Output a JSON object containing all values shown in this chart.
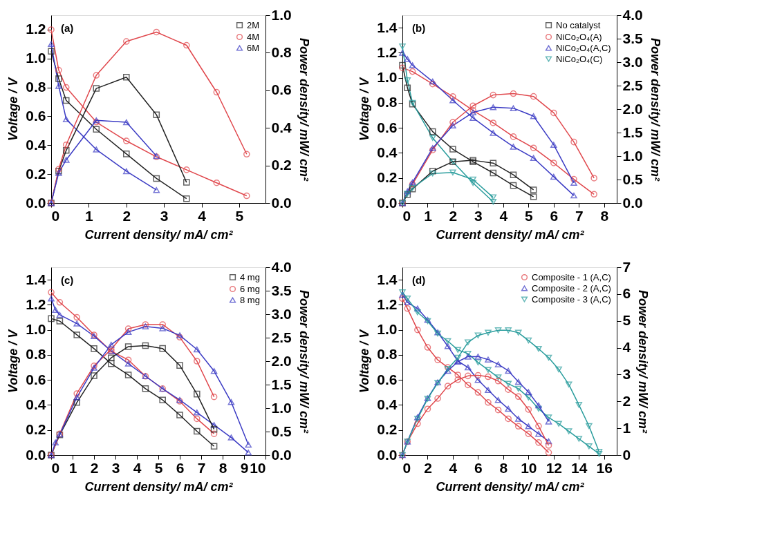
{
  "chart_data": [
    {
      "type": "line",
      "xlabel": "Current density/ mA/ cm²",
      "ylabel": "Voltage / V",
      "y2label": "Power density/ mW/ cm²",
      "annotations": [
        "(a)"
      ],
      "legend": "top right",
      "grid": false,
      "xlim": [
        0,
        5.7
      ],
      "xticks": [
        0,
        1,
        2,
        3,
        4,
        5
      ],
      "ylim": [
        0,
        1.3
      ],
      "yticks": [
        {
          "value": 0,
          "label": "0.0"
        },
        {
          "value": 0.2,
          "label": "0.2"
        },
        {
          "value": 0.4,
          "label": "0.4"
        },
        {
          "value": 0.6,
          "label": "0.6"
        },
        {
          "value": 0.8,
          "label": "0.8"
        },
        {
          "value": 1.0,
          "label": "1.0"
        },
        {
          "value": 1.2,
          "label": "1.2"
        }
      ],
      "y2lim": [
        0,
        1.0
      ],
      "y2ticks": [
        {
          "value": 0,
          "label": "0.0"
        },
        {
          "value": 0.2,
          "label": "0.2"
        },
        {
          "value": 0.4,
          "label": "0.4"
        },
        {
          "value": 0.6,
          "label": "0.6"
        },
        {
          "value": 0.8,
          "label": "0.8"
        },
        {
          "value": 1.0,
          "label": "1.0"
        }
      ],
      "series": [
        {
          "name": "2M",
          "color": "#222222",
          "marker": "square",
          "x": [
            0,
            0.2,
            0.4,
            1.2,
            2.0,
            2.8,
            3.6
          ],
          "values": [
            1.05,
            0.86,
            0.71,
            0.51,
            0.34,
            0.17,
            0.03
          ]
        },
        {
          "name": "4M",
          "color": "#e0474c",
          "marker": "circle",
          "x": [
            0,
            0.2,
            0.4,
            1.2,
            2.0,
            2.8,
            3.6,
            4.4,
            5.2
          ],
          "values": [
            1.2,
            0.92,
            0.8,
            0.56,
            0.43,
            0.32,
            0.23,
            0.14,
            0.05
          ]
        },
        {
          "name": "6M",
          "color": "#3b3bc4",
          "marker": "triangle",
          "x": [
            0,
            0.2,
            0.4,
            1.2,
            2.0,
            2.8
          ],
          "values": [
            1.1,
            0.81,
            0.58,
            0.37,
            0.22,
            0.09
          ]
        },
        {
          "color": "#222222",
          "marker": "square",
          "axis": "y2",
          "x": [
            0,
            0.2,
            0.4,
            1.2,
            2.0,
            2.8,
            3.6
          ],
          "values": [
            0,
            0.17,
            0.28,
            0.61,
            0.67,
            0.47,
            0.11
          ]
        },
        {
          "color": "#e0474c",
          "marker": "circle",
          "axis": "y2",
          "x": [
            0,
            0.2,
            0.4,
            1.2,
            2.0,
            2.8,
            3.6,
            4.4,
            5.2
          ],
          "values": [
            0,
            0.18,
            0.31,
            0.68,
            0.86,
            0.91,
            0.84,
            0.59,
            0.26
          ]
        },
        {
          "color": "#3b3bc4",
          "marker": "triangle",
          "axis": "y2",
          "x": [
            0,
            0.2,
            0.4,
            1.2,
            2.0,
            2.8
          ],
          "values": [
            0,
            0.16,
            0.23,
            0.44,
            0.43,
            0.25
          ]
        }
      ]
    },
    {
      "type": "line",
      "xlabel": "Current density/ mA/ cm²",
      "ylabel": "Voltage / V",
      "y2label": "Power density/ mW/ cm²",
      "annotations": [
        "(b)"
      ],
      "legend": "top right",
      "grid": false,
      "xlim": [
        0,
        8.5
      ],
      "xticks": [
        0,
        1,
        2,
        3,
        4,
        5,
        6,
        7,
        8
      ],
      "ylim": [
        0,
        1.5
      ],
      "yticks": [
        {
          "value": 0,
          "label": "0.0"
        },
        {
          "value": 0.2,
          "label": "0.2"
        },
        {
          "value": 0.4,
          "label": "0.4"
        },
        {
          "value": 0.6,
          "label": "0.6"
        },
        {
          "value": 0.8,
          "label": "0.8"
        },
        {
          "value": 1.0,
          "label": "1.0"
        },
        {
          "value": 1.2,
          "label": "1.2"
        },
        {
          "value": 1.4,
          "label": "1.4"
        }
      ],
      "y2lim": [
        0,
        4.0
      ],
      "y2ticks": [
        {
          "value": 0,
          "label": "0.0"
        },
        {
          "value": 0.5,
          "label": "0.5"
        },
        {
          "value": 1.0,
          "label": "1.0"
        },
        {
          "value": 1.5,
          "label": "1.5"
        },
        {
          "value": 2.0,
          "label": "2.0"
        },
        {
          "value": 2.5,
          "label": "2.5"
        },
        {
          "value": 3.0,
          "label": "3.0"
        },
        {
          "value": 3.5,
          "label": "3.5"
        },
        {
          "value": 4.0,
          "label": "4.0"
        }
      ],
      "series": [
        {
          "name": "No catalyst",
          "color": "#222222",
          "marker": "square",
          "x": [
            0,
            0.2,
            0.4,
            1.2,
            2.0,
            2.8,
            3.6,
            4.4,
            5.2
          ],
          "values": [
            1.1,
            0.92,
            0.79,
            0.57,
            0.43,
            0.33,
            0.24,
            0.14,
            0.05
          ]
        },
        {
          "name": "NiCo₂O₄(A)",
          "color": "#e0474c",
          "marker": "circle",
          "x": [
            0,
            0.4,
            1.2,
            2.0,
            2.8,
            3.6,
            4.4,
            5.2,
            6.0,
            6.8,
            7.6
          ],
          "values": [
            1.08,
            1.05,
            0.95,
            0.85,
            0.74,
            0.64,
            0.53,
            0.44,
            0.32,
            0.19,
            0.07
          ]
        },
        {
          "name": "NiCo₂O₄(A,C)",
          "color": "#3b3bc4",
          "marker": "triangle",
          "x": [
            0,
            0.2,
            0.4,
            1.2,
            2.0,
            2.8,
            3.6,
            4.4,
            5.2,
            6.0,
            6.8
          ],
          "values": [
            1.2,
            1.15,
            1.1,
            0.97,
            0.82,
            0.68,
            0.56,
            0.45,
            0.36,
            0.21,
            0.06
          ]
        },
        {
          "name": "NiCo₂O₄(C)",
          "color": "#2a9d9d",
          "marker": "triangle-down",
          "x": [
            0,
            0.2,
            0.4,
            1.2,
            2.0,
            2.8,
            3.6
          ],
          "values": [
            1.25,
            0.98,
            0.8,
            0.52,
            0.33,
            0.16,
            0.01
          ]
        },
        {
          "color": "#222222",
          "marker": "square",
          "axis": "y2",
          "x": [
            0,
            0.2,
            0.4,
            1.2,
            2.0,
            2.8,
            3.6,
            4.4,
            5.2
          ],
          "values": [
            0,
            0.18,
            0.3,
            0.68,
            0.88,
            0.91,
            0.85,
            0.6,
            0.28
          ]
        },
        {
          "color": "#e0474c",
          "marker": "circle",
          "axis": "y2",
          "x": [
            0,
            0.4,
            1.2,
            2.0,
            2.8,
            3.6,
            4.4,
            5.2,
            6.0,
            6.8,
            7.6
          ],
          "values": [
            0,
            0.4,
            1.13,
            1.72,
            2.07,
            2.3,
            2.33,
            2.27,
            1.92,
            1.3,
            0.53
          ]
        },
        {
          "color": "#3b3bc4",
          "marker": "triangle",
          "axis": "y2",
          "x": [
            0,
            0.2,
            0.4,
            1.2,
            2.0,
            2.8,
            3.6,
            4.4,
            5.2,
            6.0,
            6.8
          ],
          "values": [
            0,
            0.25,
            0.44,
            1.17,
            1.65,
            1.93,
            2.04,
            2.02,
            1.85,
            1.24,
            0.43
          ]
        },
        {
          "color": "#2a9d9d",
          "marker": "triangle-down",
          "axis": "y2",
          "x": [
            0,
            0.2,
            0.4,
            1.2,
            2.0,
            2.8,
            3.6
          ],
          "values": [
            0,
            0.2,
            0.32,
            0.63,
            0.65,
            0.5,
            0.12
          ]
        }
      ]
    },
    {
      "type": "line",
      "xlabel": "Current density/ mA/ cm²",
      "ylabel": "Voltage / V",
      "y2label": "Power density/ mW/ cm²",
      "annotations": [
        "(c)"
      ],
      "legend": "top right",
      "grid": false,
      "xlim": [
        0,
        10
      ],
      "xticks": [
        0,
        1,
        2,
        3,
        4,
        5,
        6,
        7,
        8,
        9,
        10
      ],
      "ylim": [
        0,
        1.5
      ],
      "yticks": [
        {
          "value": 0,
          "label": "0.0"
        },
        {
          "value": 0.2,
          "label": "0.2"
        },
        {
          "value": 0.4,
          "label": "0.4"
        },
        {
          "value": 0.6,
          "label": "0.6"
        },
        {
          "value": 0.8,
          "label": "0.8"
        },
        {
          "value": 1.0,
          "label": "1.0"
        },
        {
          "value": 1.2,
          "label": "1.2"
        },
        {
          "value": 1.4,
          "label": "1.4"
        }
      ],
      "y2lim": [
        0,
        4.0
      ],
      "y2ticks": [
        {
          "value": 0,
          "label": "0.0"
        },
        {
          "value": 0.5,
          "label": "0.5"
        },
        {
          "value": 1.0,
          "label": "1.0"
        },
        {
          "value": 1.5,
          "label": "1.5"
        },
        {
          "value": 2.0,
          "label": "2.0"
        },
        {
          "value": 2.5,
          "label": "2.5"
        },
        {
          "value": 3.0,
          "label": "3.0"
        },
        {
          "value": 3.5,
          "label": "3.5"
        },
        {
          "value": 4.0,
          "label": "4.0"
        }
      ],
      "series": [
        {
          "name": "4 mg",
          "color": "#222222",
          "marker": "square",
          "x": [
            0,
            0.4,
            1.2,
            2.0,
            2.8,
            3.6,
            4.4,
            5.2,
            6.0,
            6.8,
            7.6
          ],
          "values": [
            1.09,
            1.07,
            0.96,
            0.85,
            0.73,
            0.64,
            0.53,
            0.44,
            0.32,
            0.19,
            0.07
          ]
        },
        {
          "name": "6 mg",
          "color": "#e0474c",
          "marker": "circle",
          "x": [
            0,
            0.4,
            1.2,
            2.0,
            2.8,
            3.6,
            4.4,
            5.2,
            6.0,
            6.8,
            7.6
          ],
          "values": [
            1.3,
            1.22,
            1.1,
            0.96,
            0.83,
            0.76,
            0.63,
            0.53,
            0.43,
            0.29,
            0.17
          ]
        },
        {
          "name": "8 mg",
          "color": "#3b3bc4",
          "marker": "triangle",
          "x": [
            0,
            0.2,
            0.4,
            1.2,
            2.0,
            2.8,
            3.6,
            4.4,
            5.2,
            6.0,
            6.8,
            7.6,
            8.4,
            9.2
          ],
          "values": [
            1.25,
            1.16,
            1.12,
            1.05,
            0.95,
            0.83,
            0.73,
            0.63,
            0.53,
            0.44,
            0.34,
            0.24,
            0.14,
            0.02
          ]
        },
        {
          "color": "#222222",
          "marker": "square",
          "axis": "y2",
          "x": [
            0,
            0.4,
            1.2,
            2.0,
            2.8,
            3.6,
            4.4,
            5.2,
            6.0,
            6.8,
            7.6
          ],
          "values": [
            0,
            0.43,
            1.12,
            1.69,
            2.07,
            2.31,
            2.33,
            2.27,
            1.91,
            1.3,
            0.55
          ]
        },
        {
          "color": "#e0474c",
          "marker": "circle",
          "axis": "y2",
          "x": [
            0,
            0.4,
            1.2,
            2.0,
            2.8,
            3.6,
            4.4,
            5.2,
            6.0,
            6.8,
            7.6
          ],
          "values": [
            0,
            0.45,
            1.31,
            1.9,
            2.25,
            2.69,
            2.78,
            2.78,
            2.51,
            2.0,
            1.24
          ]
        },
        {
          "color": "#3b3bc4",
          "marker": "triangle",
          "axis": "y2",
          "x": [
            0,
            0.2,
            0.4,
            1.2,
            2.0,
            2.8,
            3.6,
            4.4,
            5.2,
            6.0,
            6.8,
            7.6,
            8.4,
            9.2
          ],
          "values": [
            0,
            0.27,
            0.44,
            1.23,
            1.86,
            2.35,
            2.62,
            2.74,
            2.7,
            2.55,
            2.25,
            1.79,
            1.13,
            0.22
          ]
        }
      ]
    },
    {
      "type": "line",
      "xlabel": "Current density/ mA/ cm²",
      "ylabel": "Voltage / V",
      "y2label": "Power density/ mW/ cm²",
      "annotations": [
        "(d)"
      ],
      "legend": "top right",
      "grid": false,
      "xlim": [
        0,
        17
      ],
      "xticks": [
        0,
        2,
        4,
        6,
        8,
        10,
        12,
        14,
        16
      ],
      "ylim": [
        0,
        1.5
      ],
      "yticks": [
        {
          "value": 0,
          "label": "0.0"
        },
        {
          "value": 0.2,
          "label": "0.2"
        },
        {
          "value": 0.4,
          "label": "0.4"
        },
        {
          "value": 0.6,
          "label": "0.6"
        },
        {
          "value": 0.8,
          "label": "0.8"
        },
        {
          "value": 1.0,
          "label": "1.0"
        },
        {
          "value": 1.2,
          "label": "1.2"
        },
        {
          "value": 1.4,
          "label": "1.4"
        }
      ],
      "y2lim": [
        0,
        7
      ],
      "y2ticks": [
        0,
        1,
        2,
        3,
        4,
        5,
        6,
        7
      ],
      "series": [
        {
          "name": "Composite - 1 (A,C)",
          "color": "#e0474c",
          "marker": "circle",
          "x": [
            0,
            0.4,
            1.2,
            2.0,
            2.8,
            3.6,
            4.4,
            5.2,
            6.0,
            6.8,
            7.6,
            8.4,
            9.2,
            10.0,
            10.8,
            11.6
          ],
          "values": [
            1.25,
            1.17,
            1.0,
            0.86,
            0.76,
            0.7,
            0.64,
            0.56,
            0.5,
            0.42,
            0.36,
            0.29,
            0.23,
            0.17,
            0.1,
            0.02
          ]
        },
        {
          "name": "Composite - 2 (A,C)",
          "color": "#3b3bc4",
          "marker": "triangle",
          "x": [
            0,
            0.4,
            1.2,
            2.0,
            2.8,
            3.6,
            4.4,
            5.2,
            6.0,
            6.8,
            7.6,
            8.4,
            9.2,
            10.0,
            10.8,
            11.6
          ],
          "values": [
            1.28,
            1.22,
            1.17,
            1.08,
            0.98,
            0.87,
            0.75,
            0.7,
            0.6,
            0.52,
            0.44,
            0.37,
            0.29,
            0.23,
            0.17,
            0.11
          ]
        },
        {
          "name": "Composite - 3 (A,C)",
          "color": "#2a9d9d",
          "marker": "triangle-down",
          "x": [
            0,
            0.4,
            1.2,
            2.0,
            2.8,
            3.6,
            4.4,
            5.2,
            6.0,
            6.8,
            7.6,
            8.4,
            9.2,
            10.0,
            10.8,
            11.6,
            12.4,
            13.2,
            14.0,
            14.8,
            15.6
          ],
          "values": [
            1.3,
            1.25,
            1.14,
            1.07,
            0.97,
            0.91,
            0.84,
            0.81,
            0.74,
            0.68,
            0.62,
            0.57,
            0.53,
            0.46,
            0.37,
            0.3,
            0.25,
            0.19,
            0.13,
            0.07,
            0.01
          ]
        },
        {
          "color": "#e0474c",
          "marker": "circle",
          "axis": "y2",
          "x": [
            0,
            0.4,
            1.2,
            2.0,
            2.8,
            3.6,
            4.4,
            5.2,
            6.0,
            6.8,
            7.6,
            8.4,
            9.2,
            10.0,
            10.8,
            11.6
          ],
          "values": [
            0,
            0.5,
            1.17,
            1.72,
            2.11,
            2.57,
            2.81,
            2.95,
            2.97,
            2.92,
            2.76,
            2.44,
            2.18,
            1.7,
            1.08,
            0.36
          ]
        },
        {
          "color": "#3b3bc4",
          "marker": "triangle",
          "axis": "y2",
          "x": [
            0,
            0.4,
            1.2,
            2.0,
            2.8,
            3.6,
            4.4,
            5.2,
            6.0,
            6.8,
            7.6,
            8.4,
            9.2,
            10.0,
            10.8,
            11.6
          ],
          "values": [
            0,
            0.5,
            1.41,
            2.12,
            2.71,
            3.14,
            3.48,
            3.67,
            3.67,
            3.56,
            3.38,
            3.14,
            2.73,
            2.35,
            1.85,
            1.25
          ]
        },
        {
          "color": "#2a9d9d",
          "marker": "triangle-down",
          "axis": "y2",
          "x": [
            0,
            0.4,
            1.2,
            2.0,
            2.8,
            3.6,
            4.4,
            5.2,
            6.0,
            6.8,
            7.6,
            8.4,
            9.2,
            10.0,
            10.8,
            11.6,
            12.4,
            13.2,
            14.0,
            14.8,
            15.6
          ],
          "values": [
            0,
            0.5,
            1.35,
            2.1,
            2.69,
            3.21,
            3.63,
            4.2,
            4.46,
            4.56,
            4.65,
            4.65,
            4.56,
            4.27,
            3.96,
            3.63,
            3.19,
            2.63,
            1.87,
            1.08,
            0.12
          ]
        }
      ]
    }
  ]
}
